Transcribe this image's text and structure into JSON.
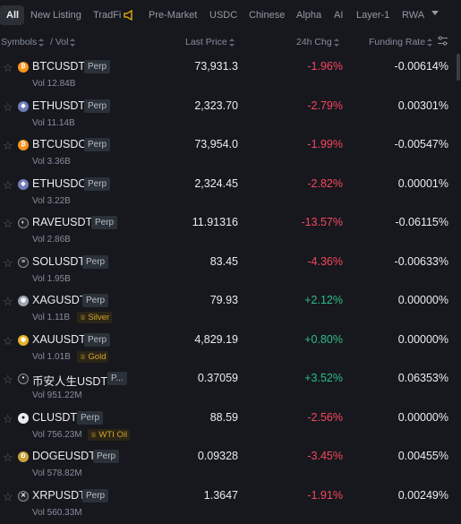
{
  "tabs": [
    {
      "label": "All",
      "active": true
    },
    {
      "label": "New Listing"
    },
    {
      "label": "TradFi"
    },
    {
      "label": "Pre-Market"
    },
    {
      "label": "USDC"
    },
    {
      "label": "Chinese"
    },
    {
      "label": "Alpha"
    },
    {
      "label": "AI"
    },
    {
      "label": "Layer-1"
    },
    {
      "label": "RWA"
    }
  ],
  "header": {
    "symbols": "Symbols",
    "vol": "/ Vol",
    "last_price": "Last Price",
    "chg": "24h Chg",
    "funding": "Funding Rate"
  },
  "colors": {
    "negative": "#f6465d",
    "positive": "#2ebd85",
    "accent": "#d0a52a"
  },
  "rows": [
    {
      "symbol": "BTCUSDT",
      "badge": "Perp",
      "vol": "Vol 12.84B",
      "price": "73,931.3",
      "chg": "-1.96%",
      "funding": "-0.00614%",
      "icon": "btc-icon",
      "dir": "neg"
    },
    {
      "symbol": "ETHUSDT",
      "badge": "Perp",
      "vol": "Vol 11.14B",
      "price": "2,323.70",
      "chg": "-2.79%",
      "funding": "0.00301%",
      "icon": "eth-icon",
      "dir": "neg"
    },
    {
      "symbol": "BTCUSDC",
      "badge": "Perp",
      "vol": "Vol 3.36B",
      "price": "73,954.0",
      "chg": "-1.99%",
      "funding": "-0.00547%",
      "icon": "btc-icon",
      "dir": "neg"
    },
    {
      "symbol": "ETHUSDC",
      "badge": "Perp",
      "vol": "Vol 3.22B",
      "price": "2,324.45",
      "chg": "-2.82%",
      "funding": "0.00001%",
      "icon": "eth-icon",
      "dir": "neg"
    },
    {
      "symbol": "RAVEUSDT",
      "badge": "Perp",
      "vol": "Vol 2.86B",
      "price": "11.91316",
      "chg": "-13.57%",
      "funding": "-0.06115%",
      "icon": "rave-icon",
      "dir": "neg"
    },
    {
      "symbol": "SOLUSDT",
      "badge": "Perp",
      "vol": "Vol 1.95B",
      "price": "83.45",
      "chg": "-4.36%",
      "funding": "-0.00633%",
      "icon": "sol-icon",
      "dir": "neg"
    },
    {
      "symbol": "XAGUSDT",
      "badge": "Perp",
      "vol": "Vol 1.11B",
      "tag": "Silver",
      "price": "79.93",
      "chg": "+2.12%",
      "funding": "0.00000%",
      "icon": "silver-icon",
      "dir": "pos"
    },
    {
      "symbol": "XAUUSDT",
      "badge": "Perp",
      "vol": "Vol 1.01B",
      "tag": "Gold",
      "price": "4,829.19",
      "chg": "+0.80%",
      "funding": "0.00000%",
      "icon": "gold-icon",
      "dir": "pos"
    },
    {
      "symbol": "币安人生USDT",
      "badge": "P...",
      "vol": "Vol 951.22M",
      "price": "0.37059",
      "chg": "+3.52%",
      "funding": "0.06353%",
      "icon": "binance-life-icon",
      "dir": "pos"
    },
    {
      "symbol": "CLUSDT",
      "badge": "Perp",
      "vol": "Vol 756.23M",
      "tag": "WTI Oil",
      "price": "88.59",
      "chg": "-2.56%",
      "funding": "0.00000%",
      "icon": "oil-icon",
      "dir": "neg"
    },
    {
      "symbol": "DOGEUSDT",
      "badge": "Perp",
      "vol": "Vol 578.82M",
      "price": "0.09328",
      "chg": "-3.45%",
      "funding": "0.00455%",
      "icon": "doge-icon",
      "dir": "neg"
    },
    {
      "symbol": "XRPUSDT",
      "badge": "Perp",
      "vol": "Vol 560.33M",
      "price": "1.3647",
      "chg": "-1.91%",
      "funding": "0.00249%",
      "icon": "xrp-icon",
      "dir": "neg"
    }
  ]
}
